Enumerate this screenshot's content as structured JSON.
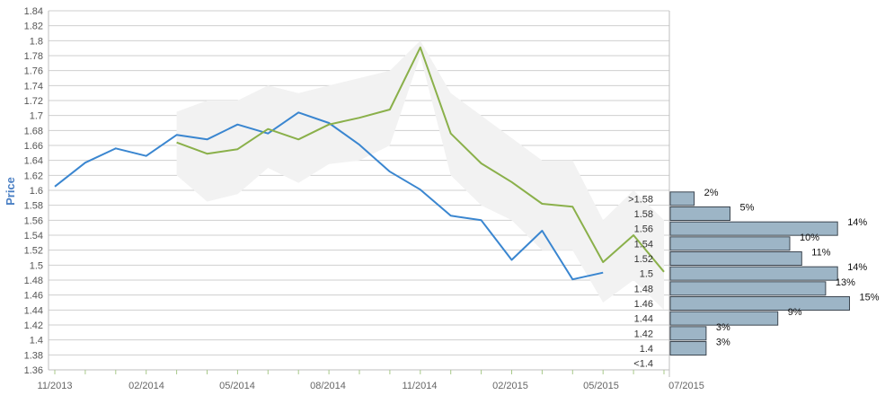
{
  "chart_data": {
    "type": "line",
    "ylabel": "Price",
    "ylim": [
      1.36,
      1.84
    ],
    "y_ticks": [
      "1.84",
      "1.82",
      "1.8",
      "1.78",
      "1.76",
      "1.74",
      "1.72",
      "1.7",
      "1.68",
      "1.66",
      "1.64",
      "1.62",
      "1.6",
      "1.58",
      "1.56",
      "1.54",
      "1.52",
      "1.5",
      "1.48",
      "1.46",
      "1.44",
      "1.42",
      "1.4",
      "1.38",
      "1.36"
    ],
    "x_ticks": [
      "11/2013",
      "02/2014",
      "05/2014",
      "08/2014",
      "11/2014",
      "02/2015",
      "05/2015",
      "07/2015"
    ],
    "grid": true,
    "series": [
      {
        "color": "#3a86d0",
        "x": [
          "2013-11",
          "2013-12",
          "2014-01",
          "2014-02",
          "2014-03",
          "2014-04",
          "2014-05",
          "2014-06",
          "2014-07",
          "2014-08",
          "2014-09",
          "2014-10",
          "2014-11",
          "2014-12",
          "2015-01",
          "2015-02",
          "2015-03",
          "2015-04",
          "2015-05"
        ],
        "values": [
          1.605,
          1.637,
          1.656,
          1.646,
          1.674,
          1.668,
          1.688,
          1.676,
          1.704,
          1.69,
          1.661,
          1.625,
          1.601,
          1.566,
          1.56,
          1.507,
          1.546,
          1.481,
          1.49
        ]
      },
      {
        "color": "#8ab04a",
        "x": [
          "2014-03",
          "2014-04",
          "2014-05",
          "2014-06",
          "2014-07",
          "2014-08",
          "2014-09",
          "2014-10",
          "2014-11",
          "2014-12",
          "2015-01",
          "2015-02",
          "2015-03",
          "2015-04",
          "2015-05",
          "2015-06",
          "2015-07"
        ],
        "values": [
          1.664,
          1.649,
          1.655,
          1.682,
          1.668,
          1.688,
          1.697,
          1.708,
          1.791,
          1.676,
          1.636,
          1.611,
          1.582,
          1.578,
          1.504,
          1.54,
          1.491
        ]
      }
    ],
    "band": {
      "color": "#f2f2f2",
      "x": [
        "2014-03",
        "2014-04",
        "2014-05",
        "2014-06",
        "2014-07",
        "2014-08",
        "2014-09",
        "2014-10",
        "2014-11",
        "2014-12",
        "2015-01",
        "2015-02",
        "2015-03",
        "2015-04",
        "2015-05",
        "2015-06",
        "2015-07"
      ],
      "upper": [
        1.705,
        1.72,
        1.72,
        1.74,
        1.73,
        1.74,
        1.75,
        1.76,
        1.8,
        1.73,
        1.7,
        1.67,
        1.64,
        1.64,
        1.56,
        1.6,
        1.56
      ],
      "lower": [
        1.62,
        1.585,
        1.595,
        1.63,
        1.61,
        1.635,
        1.64,
        1.66,
        1.78,
        1.62,
        1.58,
        1.56,
        1.52,
        1.52,
        1.45,
        1.48,
        1.44
      ]
    },
    "histogram": {
      "bar_color": "#9db5c6",
      "categories": [
        ">1.58",
        "1.58",
        "1.56",
        "1.54",
        "1.52",
        "1.5",
        "1.48",
        "1.46",
        "1.44",
        "1.42",
        "1.4",
        "<1.4"
      ],
      "percents": [
        2,
        5,
        14,
        10,
        11,
        14,
        13,
        15,
        9,
        3,
        3,
        0
      ],
      "labels": [
        "2%",
        "5%",
        "14%",
        "10%",
        "11%",
        "14%",
        "13%",
        "15%",
        "9%",
        "3%",
        "3%",
        ""
      ]
    }
  }
}
